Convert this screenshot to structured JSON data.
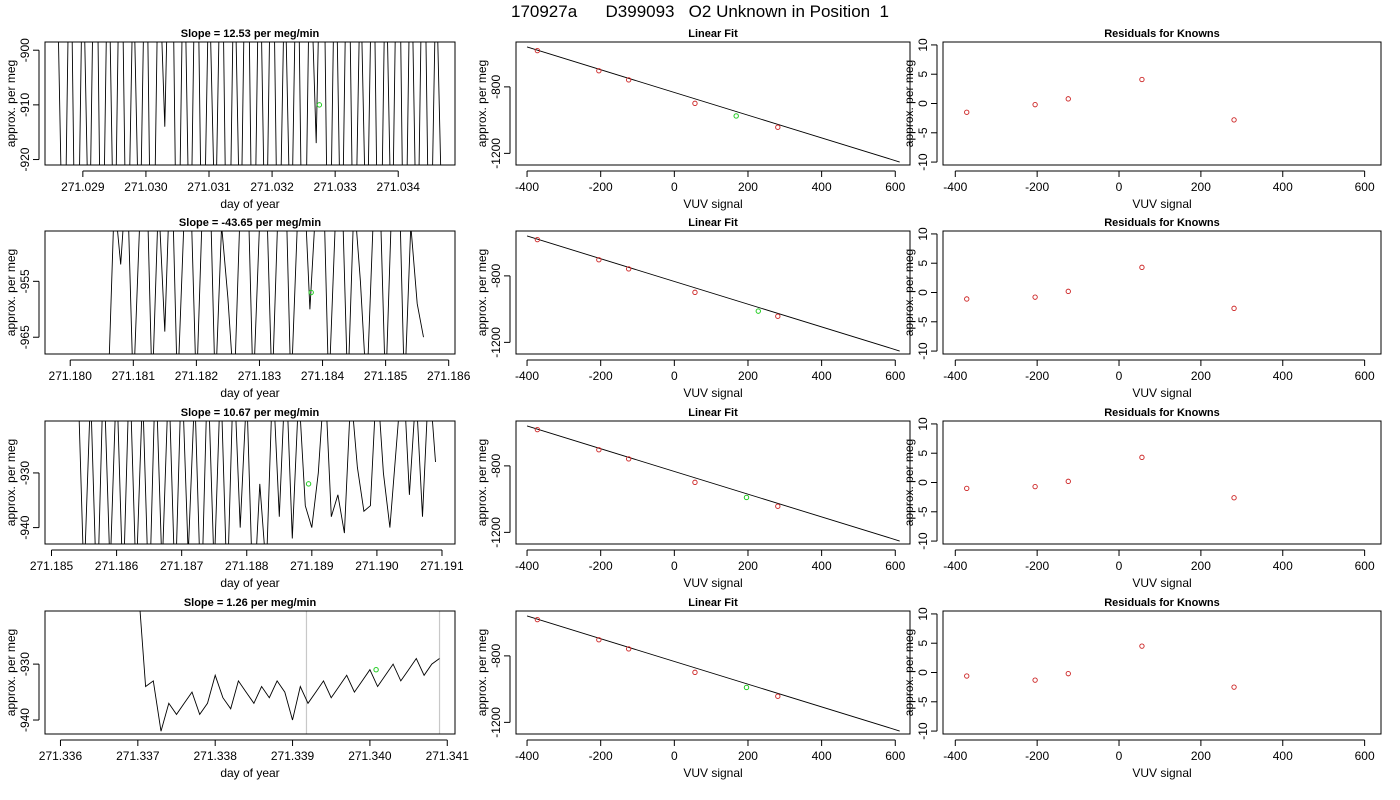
{
  "page_title": "170927a      D399093   O2 Unknown in Position  1",
  "chart_data": [
    {
      "type": "line",
      "title": "Slope =  12.53  per meg/min",
      "xlabel": "day of year",
      "ylabel": "approx. per meg",
      "xticks": [
        "271.029",
        "271.030",
        "271.031",
        "271.032",
        "271.033",
        "271.034"
      ],
      "xtick_values": [
        271.029,
        271.03,
        271.031,
        271.032,
        271.033,
        271.034
      ],
      "yticks": [
        "-920",
        "-910",
        "-900"
      ],
      "ytick_values": [
        -920,
        -910,
        -900
      ],
      "xlim": [
        271.0284,
        271.0349
      ],
      "ylim": [
        -921,
        -898.5
      ],
      "x": [
        271.0286,
        271.0287,
        271.0288,
        271.0289,
        271.029,
        271.0291,
        271.0292,
        271.0293,
        271.0294,
        271.0295,
        271.0296,
        271.0297,
        271.0298,
        271.0299,
        271.03,
        271.0301,
        271.0302,
        271.0303,
        271.0304,
        271.0305,
        271.0306,
        271.0307,
        271.0308,
        271.0309,
        271.031,
        271.0311,
        271.0312,
        271.0313,
        271.0314,
        271.0315,
        271.0316,
        271.0317,
        271.0318,
        271.0319,
        271.032,
        271.0321,
        271.0322,
        271.0323,
        271.0324,
        271.0325,
        271.0326,
        271.0327,
        271.0328,
        271.0329,
        271.033,
        271.0331,
        271.0332,
        271.0333,
        271.0334,
        271.0335,
        271.0336,
        271.0337,
        271.0338,
        271.0339,
        271.034,
        271.0341,
        271.0342,
        271.0343,
        271.0344,
        271.0345,
        271.0346,
        271.0347
      ],
      "y": [
        -890,
        -950,
        -870,
        -960,
        -880,
        -940,
        -860,
        -955,
        -875,
        -945,
        -865,
        -950,
        -885,
        -940,
        -870,
        -960,
        -880,
        -914,
        -860,
        -955,
        -875,
        -945,
        -865,
        -950,
        -885,
        -935,
        -870,
        -960,
        -880,
        -940,
        -860,
        -955,
        -875,
        -945,
        -865,
        -950,
        -885,
        -940,
        -870,
        -960,
        -880,
        -917,
        -860,
        -955,
        -875,
        -945,
        -865,
        -950,
        -885,
        -940,
        -870,
        -960,
        -880,
        -940,
        -860,
        -955,
        -875,
        -945,
        -865,
        -950,
        -885,
        -935
      ],
      "highlight": {
        "x": 271.03275,
        "y": -910
      }
    },
    {
      "type": "scatter",
      "title": "Linear Fit",
      "xlabel": "VUV signal",
      "ylabel": "approx. per meg",
      "xticks": [
        "-400",
        "-200",
        "0",
        "200",
        "400",
        "600"
      ],
      "xtick_values": [
        -400,
        -200,
        0,
        200,
        400,
        600
      ],
      "yticks": [
        "-1200",
        "-800"
      ],
      "ytick_values": [
        -1200,
        -800
      ],
      "xlim": [
        -430,
        640
      ],
      "ylim": [
        -1270,
        -530
      ],
      "x": [
        -372,
        -205,
        -124,
        56,
        281
      ],
      "y": [
        -582,
        -703,
        -758,
        -899,
        -1043
      ],
      "fit": {
        "x": [
          -400,
          612
        ],
        "y": [
          -560,
          -1252
        ]
      },
      "highlight": {
        "x": 168,
        "y": -975
      }
    },
    {
      "type": "scatter",
      "title": "Residuals for Knowns",
      "xlabel": "VUV signal",
      "ylabel": "approx. per meg",
      "xticks": [
        "-400",
        "-200",
        "0",
        "200",
        "400",
        "600"
      ],
      "xtick_values": [
        -400,
        -200,
        0,
        200,
        400,
        600
      ],
      "yticks": [
        "-10",
        "-5",
        "0",
        "5",
        "10"
      ],
      "ytick_values": [
        -10,
        -5,
        0,
        5,
        10
      ],
      "xlim": [
        -430,
        640
      ],
      "ylim": [
        -10.5,
        10.5
      ],
      "x": [
        -372,
        -205,
        -124,
        56,
        281
      ],
      "y": [
        -1.5,
        -0.2,
        0.8,
        4.1,
        -2.8
      ]
    },
    {
      "type": "line",
      "title": "Slope =  -43.65  per meg/min",
      "xlabel": "day of year",
      "ylabel": "approx. per meg",
      "xticks": [
        "271.180",
        "271.181",
        "271.182",
        "271.183",
        "271.184",
        "271.185",
        "271.186"
      ],
      "xtick_values": [
        271.18,
        271.181,
        271.182,
        271.183,
        271.184,
        271.185,
        271.186
      ],
      "yticks": [
        "-965",
        "-955"
      ],
      "ytick_values": [
        -965,
        -955
      ],
      "xlim": [
        271.1796,
        271.1861
      ],
      "ylim": [
        -968,
        -946
      ],
      "x": [
        271.1806,
        271.1807,
        271.1808,
        271.1809,
        271.181,
        271.1811,
        271.1812,
        271.1813,
        271.1814,
        271.1815,
        271.1816,
        271.1817,
        271.1818,
        271.1819,
        271.182,
        271.1821,
        271.1822,
        271.1823,
        271.1824,
        271.1825,
        271.1826,
        271.1827,
        271.1828,
        271.1829,
        271.183,
        271.1831,
        271.1832,
        271.1833,
        271.1834,
        271.1835,
        271.1836,
        271.1837,
        271.1838,
        271.1839,
        271.184,
        271.1841,
        271.1842,
        271.1843,
        271.1844,
        271.1845,
        271.1846,
        271.1847,
        271.1848,
        271.1849,
        271.185,
        271.1851,
        271.1852,
        271.1853,
        271.1854,
        271.1855,
        271.1856
      ],
      "y": [
        -975,
        -940,
        -952,
        -935,
        -975,
        -945,
        -930,
        -975,
        -940,
        -964,
        -930,
        -975,
        -945,
        -935,
        -975,
        -940,
        -930,
        -975,
        -945,
        -958,
        -975,
        -940,
        -930,
        -975,
        -945,
        -935,
        -975,
        -940,
        -930,
        -975,
        -945,
        -935,
        -960,
        -940,
        -930,
        -975,
        -945,
        -935,
        -975,
        -940,
        -955,
        -975,
        -945,
        -935,
        -975,
        -940,
        -930,
        -975,
        -945,
        -959,
        -965
      ],
      "highlight": {
        "x": 271.18382,
        "y": -957
      }
    },
    {
      "type": "scatter",
      "title": "Linear Fit",
      "xlabel": "VUV signal",
      "ylabel": "approx. per meg",
      "xticks": [
        "-400",
        "-200",
        "0",
        "200",
        "400",
        "600"
      ],
      "xtick_values": [
        -400,
        -200,
        0,
        200,
        400,
        600
      ],
      "yticks": [
        "-1200",
        "-800"
      ],
      "ytick_values": [
        -1200,
        -800
      ],
      "xlim": [
        -430,
        640
      ],
      "ylim": [
        -1270,
        -530
      ],
      "x": [
        -372,
        -205,
        -124,
        56,
        281
      ],
      "y": [
        -582,
        -703,
        -758,
        -899,
        -1043
      ],
      "fit": {
        "x": [
          -400,
          612
        ],
        "y": [
          -560,
          -1252
        ]
      },
      "highlight": {
        "x": 228,
        "y": -1012
      }
    },
    {
      "type": "scatter",
      "title": "Residuals for Knowns",
      "xlabel": "VUV signal",
      "ylabel": "approx. per meg",
      "xticks": [
        "-400",
        "-200",
        "0",
        "200",
        "400",
        "600"
      ],
      "xtick_values": [
        -400,
        -200,
        0,
        200,
        400,
        600
      ],
      "yticks": [
        "-10",
        "-5",
        "0",
        "5",
        "10"
      ],
      "ytick_values": [
        -10,
        -5,
        0,
        5,
        10
      ],
      "xlim": [
        -430,
        640
      ],
      "ylim": [
        -10.5,
        10.5
      ],
      "x": [
        -372,
        -205,
        -124,
        56,
        281
      ],
      "y": [
        -1.1,
        -0.8,
        0.2,
        4.3,
        -2.7
      ]
    },
    {
      "type": "line",
      "title": "Slope =  10.67  per meg/min",
      "xlabel": "day of year",
      "ylabel": "approx. per meg",
      "xticks": [
        "271.185",
        "271.186",
        "271.187",
        "271.188",
        "271.189",
        "271.190",
        "271.191"
      ],
      "xtick_values": [
        271.185,
        271.186,
        271.187,
        271.188,
        271.189,
        271.19,
        271.191
      ],
      "yticks": [
        "-940",
        "-930"
      ],
      "ytick_values": [
        -940,
        -930
      ],
      "xlim": [
        271.1849,
        271.1912
      ],
      "ylim": [
        -943,
        -920.5
      ],
      "x": [
        271.1854,
        271.1855,
        271.1856,
        271.1857,
        271.1858,
        271.1859,
        271.186,
        271.1861,
        271.1862,
        271.1863,
        271.1864,
        271.1865,
        271.1866,
        271.1867,
        271.1868,
        271.1869,
        271.187,
        271.1871,
        271.1872,
        271.1873,
        271.1874,
        271.1875,
        271.1876,
        271.1877,
        271.1878,
        271.1879,
        271.188,
        271.1881,
        271.1882,
        271.1883,
        271.1884,
        271.1885,
        271.1886,
        271.1887,
        271.1888,
        271.1889,
        271.189,
        271.1891,
        271.1892,
        271.1893,
        271.1894,
        271.1895,
        271.1896,
        271.1897,
        271.1898,
        271.1899,
        271.19,
        271.1901,
        271.1902,
        271.1903,
        271.1904,
        271.1905,
        271.1906,
        271.1907,
        271.1908,
        271.1909
      ],
      "y": [
        -910,
        -950,
        -915,
        -955,
        -910,
        -948,
        -912,
        -952,
        -910,
        -950,
        -915,
        -955,
        -910,
        -948,
        -912,
        -952,
        -910,
        -945,
        -915,
        -955,
        -910,
        -948,
        -912,
        -952,
        -910,
        -940,
        -915,
        -955,
        -932,
        -948,
        -912,
        -938,
        -910,
        -942,
        -915,
        -936,
        -940,
        -930,
        -912,
        -938,
        -934,
        -941,
        -915,
        -929,
        -937,
        -936,
        -912,
        -930,
        -940,
        -925,
        -910,
        -934,
        -915,
        -938,
        -912,
        -928
      ],
      "highlight": {
        "x": 271.18895,
        "y": -932
      }
    },
    {
      "type": "scatter",
      "title": "Linear Fit",
      "xlabel": "VUV signal",
      "ylabel": "approx. per meg",
      "xticks": [
        "-400",
        "-200",
        "0",
        "200",
        "400",
        "600"
      ],
      "xtick_values": [
        -400,
        -200,
        0,
        200,
        400,
        600
      ],
      "yticks": [
        "-1200",
        "-800"
      ],
      "ytick_values": [
        -1200,
        -800
      ],
      "xlim": [
        -430,
        640
      ],
      "ylim": [
        -1270,
        -530
      ],
      "x": [
        -372,
        -205,
        -124,
        56,
        281
      ],
      "y": [
        -582,
        -703,
        -758,
        -899,
        -1043
      ],
      "fit": {
        "x": [
          -400,
          612
        ],
        "y": [
          -560,
          -1252
        ]
      },
      "highlight": {
        "x": 196,
        "y": -990
      }
    },
    {
      "type": "scatter",
      "title": "Residuals for Knowns",
      "xlabel": "VUV signal",
      "ylabel": "approx. per meg",
      "xticks": [
        "-400",
        "-200",
        "0",
        "200",
        "400",
        "600"
      ],
      "xtick_values": [
        -400,
        -200,
        0,
        200,
        400,
        600
      ],
      "yticks": [
        "-10",
        "-5",
        "0",
        "5",
        "10"
      ],
      "ytick_values": [
        -10,
        -5,
        0,
        5,
        10
      ],
      "xlim": [
        -430,
        640
      ],
      "ylim": [
        -10.5,
        10.5
      ],
      "x": [
        -372,
        -205,
        -124,
        56,
        281
      ],
      "y": [
        -1.0,
        -0.7,
        0.2,
        4.3,
        -2.6
      ]
    },
    {
      "type": "line",
      "title": "Slope =  1.26  per meg/min",
      "xlabel": "day of year",
      "ylabel": "approx. per meg",
      "xticks": [
        "271.336",
        "271.337",
        "271.338",
        "271.339",
        "271.340",
        "271.341"
      ],
      "xtick_values": [
        271.336,
        271.337,
        271.338,
        271.339,
        271.34,
        271.341
      ],
      "yticks": [
        "-940",
        "-930"
      ],
      "ytick_values": [
        -940,
        -930
      ],
      "xlim": [
        271.3358,
        271.3411
      ],
      "ylim": [
        -942.5,
        -920.5
      ],
      "vlines": [
        271.33918,
        271.3409
      ],
      "x": [
        271.337,
        271.3371,
        271.3372,
        271.3373,
        271.3374,
        271.3375,
        271.3376,
        271.3377,
        271.3378,
        271.3379,
        271.338,
        271.3381,
        271.3382,
        271.3383,
        271.3384,
        271.3385,
        271.3386,
        271.3387,
        271.3388,
        271.3389,
        271.339,
        271.3391,
        271.3392,
        271.3393,
        271.3394,
        271.3395,
        271.3396,
        271.3397,
        271.3398,
        271.3399,
        271.34,
        271.3401,
        271.3402,
        271.3403,
        271.3404,
        271.3405,
        271.3406,
        271.3407,
        271.3408,
        271.3409
      ],
      "y": [
        -915,
        -934,
        -933,
        -942,
        -937,
        -939,
        -937,
        -935,
        -939,
        -937,
        -932,
        -936,
        -938,
        -933,
        -935,
        -937,
        -934,
        -936,
        -933,
        -935,
        -940,
        -934,
        -937,
        -935,
        -933,
        -936,
        -934,
        -932,
        -935,
        -933,
        -931,
        -934,
        -932,
        -930,
        -933,
        -931,
        -929,
        -932,
        -930,
        -929
      ],
      "highlight": {
        "x": 271.34008,
        "y": -931
      }
    },
    {
      "type": "scatter",
      "title": "Linear Fit",
      "xlabel": "VUV signal",
      "ylabel": "approx. per meg",
      "xticks": [
        "-400",
        "-200",
        "0",
        "200",
        "400",
        "600"
      ],
      "xtick_values": [
        -400,
        -200,
        0,
        200,
        400,
        600
      ],
      "yticks": [
        "-1200",
        "-800"
      ],
      "ytick_values": [
        -1200,
        -800
      ],
      "xlim": [
        -430,
        640
      ],
      "ylim": [
        -1270,
        -530
      ],
      "x": [
        -372,
        -205,
        -124,
        56,
        281
      ],
      "y": [
        -582,
        -703,
        -758,
        -899,
        -1043
      ],
      "fit": {
        "x": [
          -400,
          612
        ],
        "y": [
          -560,
          -1252
        ]
      },
      "highlight": {
        "x": 196,
        "y": -990
      }
    },
    {
      "type": "scatter",
      "title": "Residuals for Knowns",
      "xlabel": "VUV signal",
      "ylabel": "approx. per meg",
      "xticks": [
        "-400",
        "-200",
        "0",
        "200",
        "400",
        "600"
      ],
      "xtick_values": [
        -400,
        -200,
        0,
        200,
        400,
        600
      ],
      "yticks": [
        "-10",
        "-5",
        "0",
        "5",
        "10"
      ],
      "ytick_values": [
        -10,
        -5,
        0,
        5,
        10
      ],
      "xlim": [
        -430,
        640
      ],
      "ylim": [
        -10.5,
        10.5
      ],
      "x": [
        -372,
        -205,
        -124,
        56,
        281
      ],
      "y": [
        -0.6,
        -1.3,
        -0.2,
        4.5,
        -2.5
      ]
    }
  ]
}
